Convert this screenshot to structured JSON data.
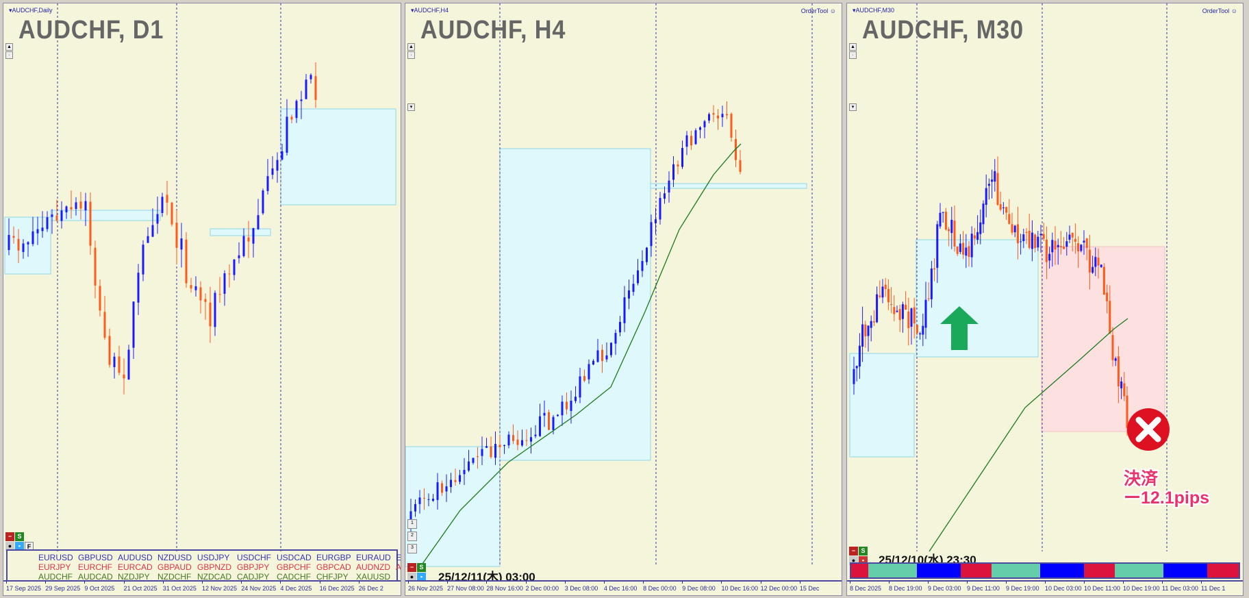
{
  "colors": {
    "bull": "#1a1aff",
    "bear": "#ff5a1a",
    "zone": "#dff8fb",
    "zone_border": "#8fd8e8",
    "sell_zone": "#fde0e0",
    "ma": "#1a7a1a",
    "grid": "#3333aa",
    "arrow": "#1aa85a",
    "close_icon": "#dd1122"
  },
  "panels": [
    {
      "label": "AUDCHF,Daily",
      "title": "AUDCHF, D1",
      "dates": [
        "17 Sep 2025",
        "29 Sep 2025",
        "9 Oct 2025",
        "21 Oct 2025",
        "31 Oct 2025",
        "12 Nov 2025",
        "24 Nov 2025",
        "4 Dec 2025",
        "16 Dec 2025",
        "26 Dec 2"
      ]
    },
    {
      "label": "AUDCHF,H4",
      "title": "AUDCHF, H4",
      "order_tool": "OrderTool",
      "timestamp": "25/12/11(木) 03:00",
      "side_buttons": [
        "1",
        "2",
        "3"
      ],
      "dates": [
        "26 Nov 2025",
        "27 Nov 08:00",
        "28 Nov 16:00",
        "2 Dec 00:00",
        "3 Dec 08:00",
        "4 Dec 16:00",
        "8 Dec 00:00",
        "9 Dec 08:00",
        "10 Dec 16:00",
        "12 Dec 00:00",
        "15 Dec"
      ]
    },
    {
      "label": "AUDCHF,M30",
      "title": "AUDCHF, M30",
      "order_tool": "OrderTool",
      "timestamp": "25/12/10(水) 23:30",
      "dates": [
        "8 Dec 2025",
        "8 Dec 19:00",
        "9 Dec 03:00",
        "9 Dec 11:00",
        "9 Dec 19:00",
        "10 Dec 03:00",
        "10 Dec 11:00",
        "10 Dec 19:00",
        "11 Dec 03:00",
        "11 Dec 1"
      ],
      "session_bar": [
        "#dc143c",
        "#66cdaa",
        "#0000ff",
        "#dc143c",
        "#66cdaa",
        "#0000ff",
        "#dc143c",
        "#66cdaa",
        "#0000ff",
        "#dc143c"
      ],
      "annotation": {
        "line1": "決済",
        "line2": "ー12.1pips"
      }
    }
  ],
  "controls": {
    "minus": "−",
    "s": "S",
    "f": "F"
  },
  "symbols": [
    {
      "color": "#3333bb",
      "items": [
        "EURUSD",
        "GBPUSD",
        "AUDUSD",
        "NZDUSD",
        "USDJPY",
        "USDCHF",
        "USDCAD",
        "EURGBP",
        "EURAUD",
        "EURNZD"
      ]
    },
    {
      "color": "#dd3344",
      "items": [
        "EURJPY",
        "EURCHF",
        "EURCAD",
        "GBPAUD",
        "GBPNZD",
        "GBPJPY",
        "GBPCHF",
        "GBPCAD",
        "AUDNZD",
        "AUDJPY"
      ]
    },
    {
      "color": "#447722",
      "items": [
        "AUDCHF",
        "AUDCAD",
        "NZDJPY",
        "NZDCHF",
        "NZDCAD",
        "CADJPY",
        "CADCHF",
        "CHFJPY",
        "XAUUSD"
      ]
    }
  ]
}
